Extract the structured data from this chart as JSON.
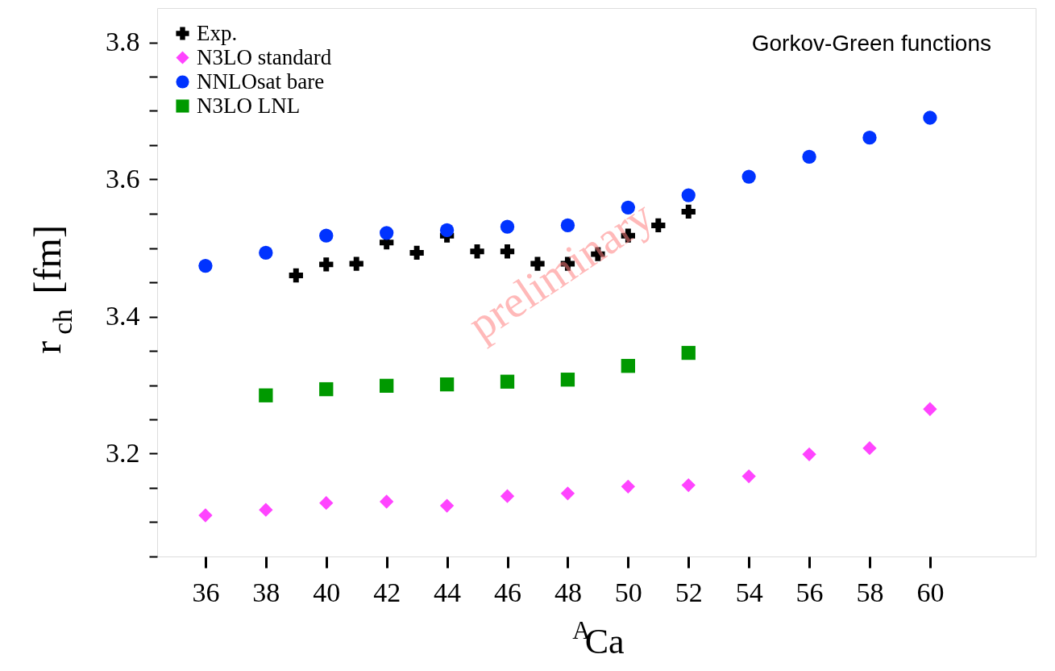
{
  "chart_data": {
    "type": "scatter",
    "xlabel": "$^{A}$Ca",
    "ylabel": "r$_{ch}$ [fm]",
    "xlim": [
      34.4,
      63.5
    ],
    "ylim": [
      3.05,
      3.85
    ],
    "xticks": [
      36,
      38,
      40,
      42,
      44,
      46,
      48,
      50,
      52,
      54,
      56,
      58,
      60
    ],
    "yticks": [
      {
        "value": 3.05,
        "label": null
      },
      {
        "value": 3.1,
        "label": null
      },
      {
        "value": 3.15,
        "label": null
      },
      3.2,
      {
        "value": 3.25,
        "label": null
      },
      {
        "value": 3.3,
        "label": null
      },
      {
        "value": 3.35,
        "label": null
      },
      3.4,
      {
        "value": 3.45,
        "label": null
      },
      {
        "value": 3.5,
        "label": null
      },
      {
        "value": 3.55,
        "label": null
      },
      3.6,
      {
        "value": 3.65,
        "label": null
      },
      {
        "value": 3.7,
        "label": null
      },
      {
        "value": 3.75,
        "label": null
      },
      3.8
    ],
    "grid": false,
    "legend": "top left",
    "annotations": [
      "Gorkov-Green functions",
      "preliminary"
    ],
    "series": [
      {
        "name": "Exp.",
        "color": "#000000",
        "marker": "cross",
        "x": [
          39,
          40,
          41,
          42,
          43,
          44,
          45,
          46,
          47,
          48,
          49,
          50,
          51,
          52
        ],
        "values": [
          3.46,
          3.476,
          3.477,
          3.508,
          3.493,
          3.518,
          3.495,
          3.495,
          3.477,
          3.477,
          3.491,
          3.518,
          3.533,
          3.553
        ]
      },
      {
        "name": "N3LO standard",
        "color": "#ff44ff",
        "marker": "diamond",
        "x": [
          36,
          38,
          40,
          42,
          44,
          46,
          48,
          50,
          52,
          54,
          56,
          58,
          60
        ],
        "values": [
          3.11,
          3.118,
          3.128,
          3.13,
          3.124,
          3.138,
          3.142,
          3.152,
          3.154,
          3.167,
          3.199,
          3.208,
          3.265
        ]
      },
      {
        "name": "NNLOsat bare",
        "color": "#0033ff",
        "marker": "circle",
        "x": [
          36,
          38,
          40,
          42,
          44,
          46,
          48,
          50,
          52,
          54,
          56,
          58,
          60
        ],
        "values": [
          3.474,
          3.493,
          3.518,
          3.522,
          3.526,
          3.531,
          3.533,
          3.559,
          3.577,
          3.604,
          3.633,
          3.661,
          3.69
        ]
      },
      {
        "name": "N3LO LNL",
        "color": "#009900",
        "marker": "square",
        "x": [
          38,
          40,
          42,
          44,
          46,
          48,
          50,
          52
        ],
        "values": [
          3.285,
          3.294,
          3.299,
          3.301,
          3.305,
          3.308,
          3.328,
          3.347
        ]
      }
    ]
  }
}
